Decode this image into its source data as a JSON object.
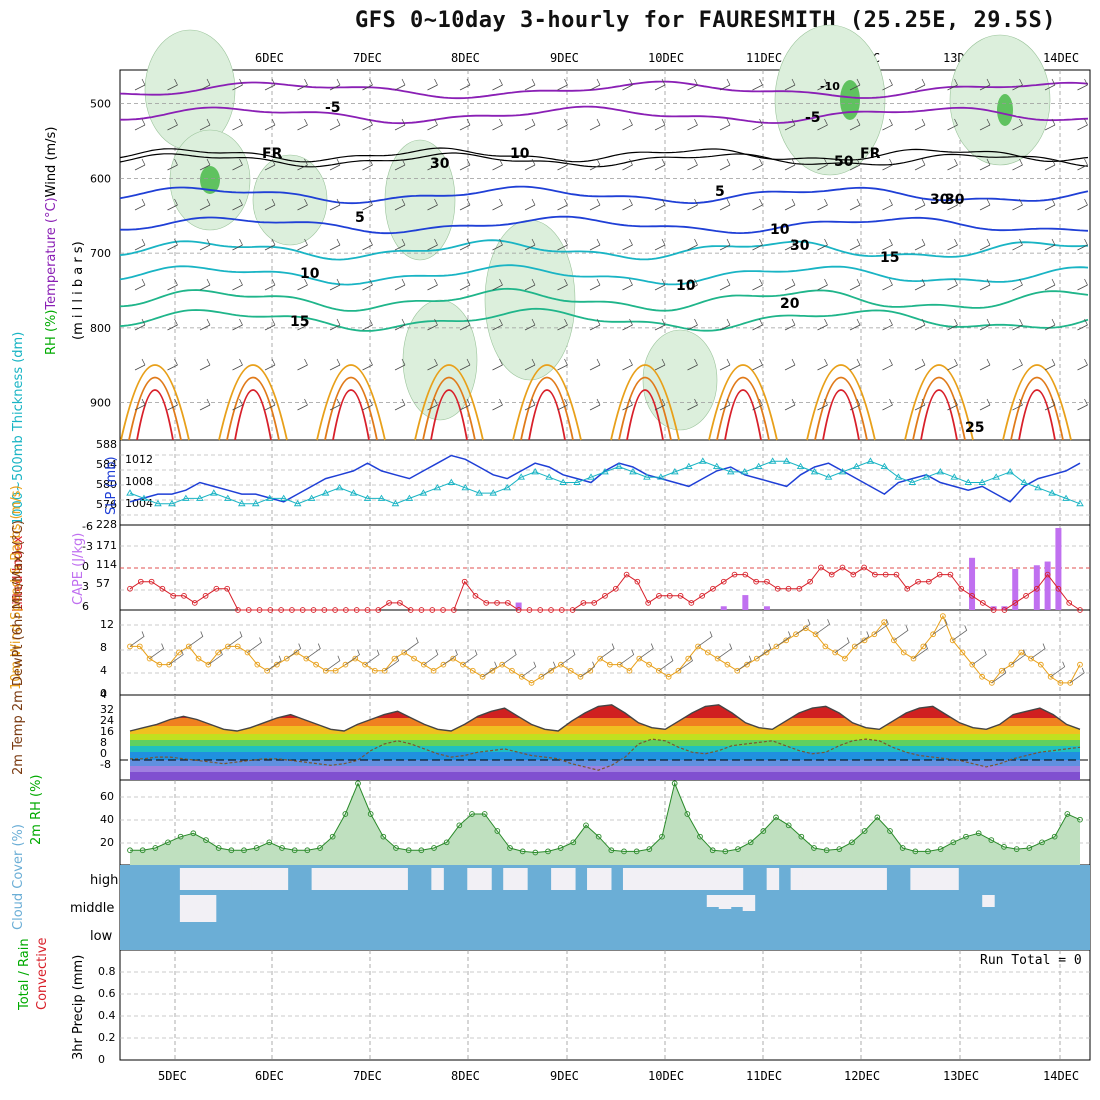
{
  "title": "GFS 0~10day 3-hourly for FAURESMITH (25.25E, 29.5S)",
  "date_labels": [
    "5DEC",
    "6DEC",
    "7DEC",
    "8DEC",
    "9DEC",
    "10DEC",
    "11DEC",
    "12DEC",
    "13DEC",
    "14DEC"
  ],
  "colors": {
    "purple": "#8a1fb5",
    "blue": "#1f3fd6",
    "teal": "#19b4c4",
    "green": "#1fb58a",
    "orange": "#e8a01a",
    "darkorange": "#e07a1a",
    "red": "#d8202a",
    "rh_fill": "#dcefdc",
    "cloud": "#6baed6",
    "cloud_clear": "#f2f0f5"
  },
  "chart_data": [
    {
      "name": "upper",
      "type": "line",
      "ylabel_parts": [
        "RH (%)",
        "Temperature (°C)",
        "Wind (m/s)"
      ],
      "ylabel_sub": "(m i l l i b a r s)",
      "yticks": [
        500,
        600,
        700,
        800,
        900
      ],
      "ylim": [
        455,
        950
      ],
      "contour_labels": [
        "-10",
        "-5",
        "-5",
        "FR",
        "FR",
        "5",
        "5",
        "10",
        "10",
        "15",
        "15",
        "20",
        "25",
        "30",
        "30",
        "30",
        "10",
        "50",
        "10",
        "30"
      ]
    },
    {
      "name": "pressure",
      "type": "line",
      "ylabel_left": "1000~500mb Thickness (dm)",
      "ylabel_right": "SLP (mb)",
      "thickness_ticks": [
        "588",
        "584",
        "580",
        "576"
      ],
      "slp_ticks": [
        "1012",
        "1008",
        "1004"
      ],
      "thickness": [
        576,
        577,
        578,
        578,
        579,
        581,
        580,
        579,
        578,
        578,
        577,
        576,
        578,
        580,
        582,
        583,
        584,
        586,
        584,
        583,
        582,
        584,
        586,
        588,
        587,
        585,
        583,
        582,
        584,
        586,
        585,
        583,
        582,
        581,
        584,
        586,
        585,
        583,
        582,
        581,
        580,
        582,
        584,
        585,
        583,
        582,
        581,
        580,
        583,
        585,
        586,
        584,
        582,
        580,
        578,
        581,
        582,
        583,
        581,
        580,
        579,
        580,
        578,
        576,
        580,
        582,
        583,
        584,
        586
      ],
      "slp": [
        1006,
        1005,
        1004,
        1004,
        1005,
        1005,
        1006,
        1005,
        1004,
        1004,
        1005,
        1005,
        1004,
        1005,
        1006,
        1007,
        1006,
        1005,
        1005,
        1004,
        1005,
        1006,
        1007,
        1008,
        1007,
        1006,
        1006,
        1007,
        1009,
        1010,
        1009,
        1008,
        1008,
        1009,
        1010,
        1011,
        1010,
        1009,
        1009,
        1010,
        1011,
        1012,
        1011,
        1010,
        1010,
        1011,
        1012,
        1012,
        1011,
        1010,
        1009,
        1010,
        1011,
        1012,
        1011,
        1009,
        1008,
        1009,
        1010,
        1009,
        1008,
        1008,
        1009,
        1010,
        1008,
        1007,
        1006,
        1005,
        1004
      ]
    },
    {
      "name": "instability",
      "type": "bar",
      "ylabel_left": "Lifted Index",
      "ylabel_right": "CAPE (J/kg)",
      "li_ticks": [
        "-6",
        "-3",
        "0",
        "3",
        "6"
      ],
      "cape_ticks": [
        "228",
        "171",
        "114",
        "57"
      ],
      "lifted_index": [
        3,
        2,
        2,
        3,
        4,
        4,
        5,
        4,
        3,
        3,
        6,
        6,
        6,
        6,
        6,
        6,
        6,
        6,
        6,
        6,
        6,
        6,
        6,
        6,
        5,
        5,
        6,
        6,
        6,
        6,
        6,
        2,
        4,
        5,
        5,
        5,
        6,
        6,
        6,
        6,
        6,
        6,
        5,
        5,
        4,
        3,
        1,
        2,
        5,
        4,
        4,
        4,
        5,
        4,
        3,
        2,
        1,
        1,
        2,
        2,
        3,
        3,
        3,
        2,
        0,
        1,
        0,
        1,
        0,
        1,
        1,
        1,
        3,
        2,
        2,
        1,
        1,
        3,
        4,
        5,
        6,
        6,
        5,
        4,
        3,
        1,
        3,
        5,
        6
      ],
      "cape": {
        "x_index": [
          36,
          55,
          57,
          59,
          78,
          80,
          81,
          82,
          84,
          85,
          86
        ],
        "values": [
          20,
          10,
          40,
          10,
          140,
          10,
          10,
          110,
          120,
          130,
          220
        ]
      }
    },
    {
      "name": "wind10m",
      "type": "line",
      "ylabel": "10m Wind Speed & Barbs (m/s)",
      "yticks": [
        "12",
        "8",
        "4",
        "0"
      ],
      "ylim": [
        0,
        14
      ],
      "speed": [
        8,
        8,
        6,
        5,
        5,
        7,
        8,
        6,
        5,
        7,
        8,
        8,
        7,
        5,
        4,
        5,
        6,
        7,
        6,
        5,
        4,
        4,
        5,
        6,
        5,
        4,
        4,
        6,
        7,
        6,
        5,
        4,
        5,
        6,
        5,
        4,
        3,
        4,
        5,
        4,
        3,
        2,
        3,
        4,
        5,
        4,
        3,
        4,
        6,
        5,
        5,
        4,
        6,
        5,
        4,
        3,
        4,
        6,
        8,
        7,
        6,
        5,
        4,
        5,
        6,
        7,
        8,
        9,
        10,
        11,
        10,
        8,
        7,
        6,
        8,
        9,
        10,
        12,
        9,
        7,
        6,
        8,
        10,
        13,
        9,
        7,
        5,
        3,
        2,
        4,
        5,
        7,
        6,
        5,
        3,
        2,
        2,
        5
      ]
    },
    {
      "name": "temp2m",
      "type": "area",
      "ylabel": "2m Temp 2m DewPt (6hr Min/Max) (°C)",
      "yticks": [
        "32",
        "24",
        "16",
        "8",
        "0",
        "-8"
      ],
      "ylim": [
        -12,
        40
      ],
      "temp": [
        18,
        20,
        22,
        25,
        27,
        25,
        22,
        19,
        18,
        20,
        23,
        26,
        28,
        25,
        22,
        19,
        18,
        22,
        25,
        28,
        30,
        26,
        22,
        19,
        18,
        22,
        27,
        30,
        32,
        27,
        22,
        19,
        18,
        24,
        29,
        33,
        34,
        29,
        23,
        20,
        19,
        24,
        29,
        33,
        34,
        29,
        23,
        20,
        19,
        24,
        29,
        32,
        33,
        29,
        23,
        20,
        19,
        24,
        29,
        32,
        33,
        28,
        23,
        20,
        19,
        22,
        28,
        30,
        32,
        28,
        22,
        19
      ],
      "dewpoint": [
        1,
        1,
        2,
        2,
        1,
        0,
        -1,
        -2,
        -1,
        0,
        1,
        1,
        0,
        -1,
        -2,
        -3,
        -2,
        0,
        6,
        10,
        12,
        10,
        7,
        4,
        2,
        3,
        5,
        6,
        7,
        5,
        3,
        2,
        1,
        -2,
        -4,
        -6,
        -3,
        2,
        10,
        13,
        12,
        8,
        5,
        4,
        6,
        9,
        10,
        11,
        12,
        9,
        6,
        4,
        5,
        9,
        12,
        13,
        12,
        8,
        5,
        3,
        2,
        1,
        0,
        -2,
        -4,
        -2,
        1,
        3,
        5,
        6,
        7,
        8
      ]
    },
    {
      "name": "rh2m",
      "type": "area",
      "ylabel": "2m RH (%)",
      "yticks": [
        "60",
        "40",
        "20"
      ],
      "ylim": [
        0,
        75
      ],
      "rh": [
        13,
        13,
        15,
        20,
        25,
        28,
        22,
        15,
        13,
        13,
        15,
        20,
        15,
        13,
        13,
        15,
        25,
        45,
        72,
        45,
        25,
        15,
        13,
        13,
        15,
        20,
        35,
        45,
        45,
        30,
        15,
        12,
        11,
        12,
        15,
        20,
        35,
        25,
        13,
        12,
        12,
        14,
        25,
        72,
        45,
        25,
        13,
        12,
        14,
        20,
        30,
        42,
        35,
        25,
        15,
        13,
        14,
        20,
        30,
        42,
        30,
        15,
        12,
        12,
        14,
        20,
        25,
        28,
        22,
        16,
        14,
        15,
        20,
        25,
        45,
        40
      ]
    },
    {
      "name": "cloud",
      "type": "area",
      "ylabel": "Cloud Cover (%)",
      "ytick_labels": [
        "high",
        "middle",
        "low"
      ],
      "high": [
        100,
        100,
        100,
        90,
        100,
        5,
        5,
        5,
        5,
        5,
        5,
        5,
        5,
        5,
        90,
        100,
        5,
        5,
        5,
        5,
        5,
        5,
        5,
        5,
        70,
        70,
        5,
        70,
        70,
        5,
        5,
        70,
        5,
        5,
        90,
        90,
        5,
        5,
        90,
        5,
        5,
        70,
        5,
        5,
        5,
        5,
        5,
        5,
        5,
        5,
        5,
        5,
        90,
        100,
        5,
        90,
        5,
        5,
        5,
        5,
        5,
        5,
        5,
        5,
        80,
        90,
        5,
        5,
        5,
        5,
        80,
        90,
        90,
        100,
        100,
        100,
        100,
        100,
        100,
        100,
        100
      ],
      "middle": [
        100,
        100,
        100,
        100,
        100,
        5,
        5,
        5,
        100,
        100,
        100,
        100,
        100,
        100,
        100,
        100,
        100,
        100,
        100,
        100,
        100,
        100,
        100,
        100,
        100,
        100,
        100,
        100,
        100,
        100,
        100,
        100,
        100,
        100,
        100,
        100,
        100,
        100,
        100,
        100,
        100,
        100,
        100,
        100,
        100,
        100,
        100,
        100,
        100,
        80,
        70,
        80,
        60,
        100,
        100,
        100,
        100,
        100,
        100,
        100,
        100,
        100,
        100,
        100,
        100,
        100,
        100,
        90,
        90,
        100,
        100,
        100,
        80,
        100,
        100,
        100,
        100,
        100,
        100,
        100,
        100
      ]
    },
    {
      "name": "precip",
      "type": "bar",
      "ylabel_parts": [
        "Total / Rain",
        "Convective"
      ],
      "ylabel_right": "3hr Precip (mm)",
      "yticks": [
        "0.8",
        "0.6",
        "0.4",
        "0.2",
        "0"
      ],
      "ylim": [
        0,
        1
      ],
      "annotation": "Run Total = 0"
    }
  ]
}
